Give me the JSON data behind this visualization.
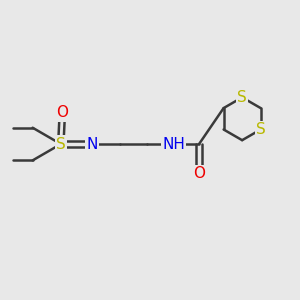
{
  "background_color": "#e8e8e8",
  "bond_color": "#3a3a3a",
  "sulfur_color": "#b8b800",
  "nitrogen_color": "#0000ee",
  "oxygen_color": "#ee0000",
  "bond_width": 1.8,
  "font_size_atom": 10,
  "fig_width": 3.0,
  "fig_height": 3.0,
  "dpi": 100,
  "xlim": [
    0,
    10
  ],
  "ylim": [
    0,
    10
  ]
}
